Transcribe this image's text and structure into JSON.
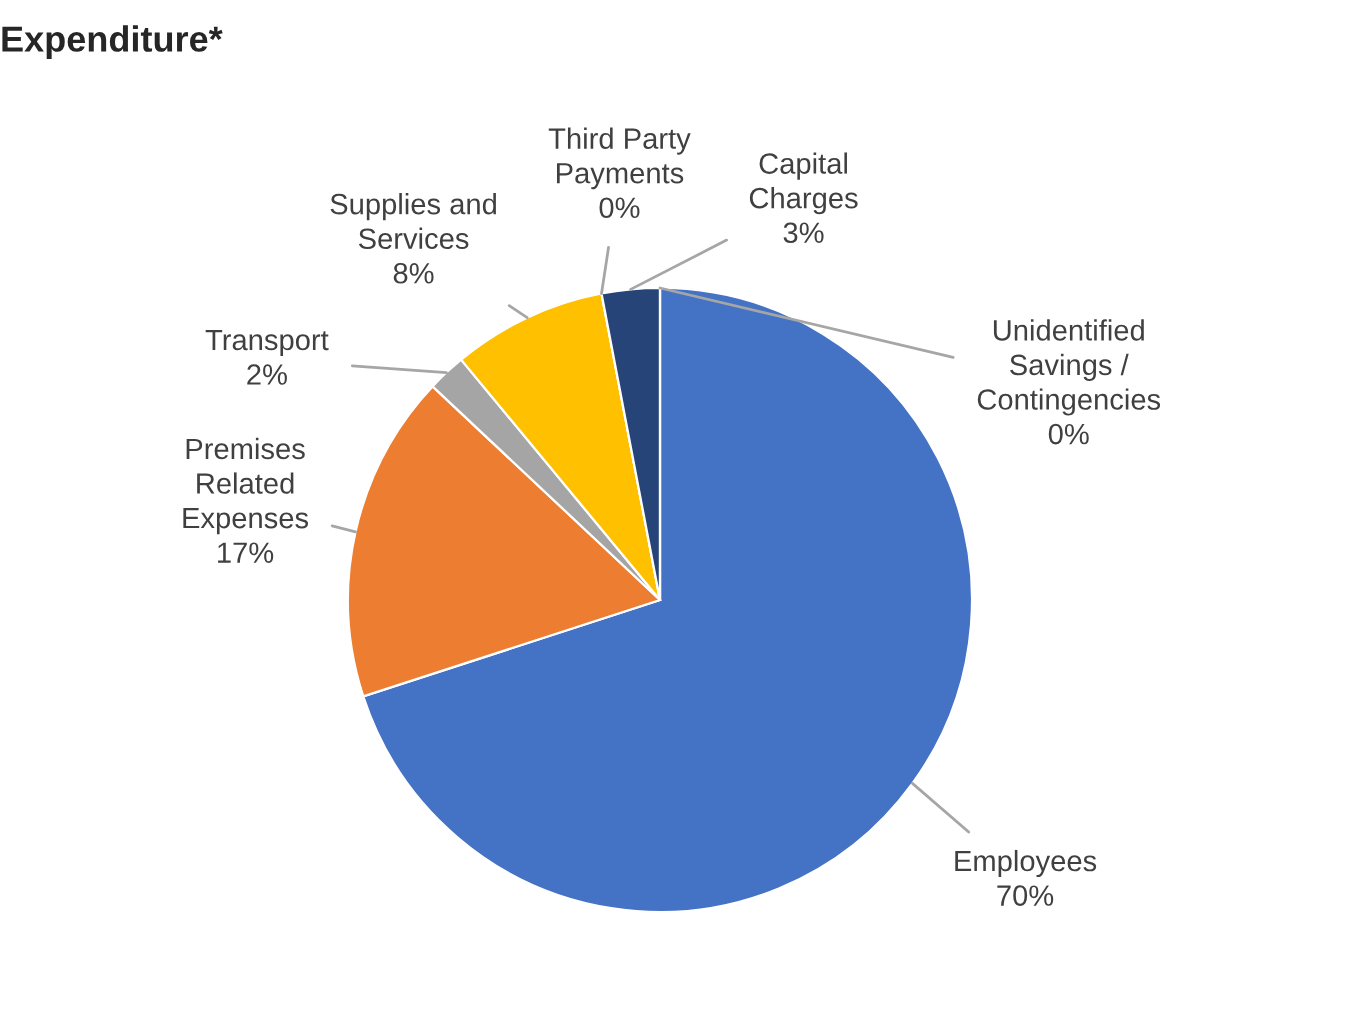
{
  "chart_data": {
    "type": "pie",
    "title": "Expenditure*",
    "categories": [
      "Employees",
      "Premises Related Expenses",
      "Transport",
      "Supplies and Services",
      "Third Party Payments",
      "Capital Charges",
      "Unidentified Savings / Contingencies"
    ],
    "values": [
      70,
      17,
      2,
      8,
      0,
      3,
      0
    ],
    "colors": [
      "#4472c4",
      "#ed7d31",
      "#a5a5a5",
      "#ffc000",
      "#5b9bd5",
      "#264478",
      "#9e480e"
    ],
    "value_labels": [
      "70%",
      "17%",
      "2%",
      "8%",
      "0%",
      "3%",
      "0%"
    ]
  }
}
